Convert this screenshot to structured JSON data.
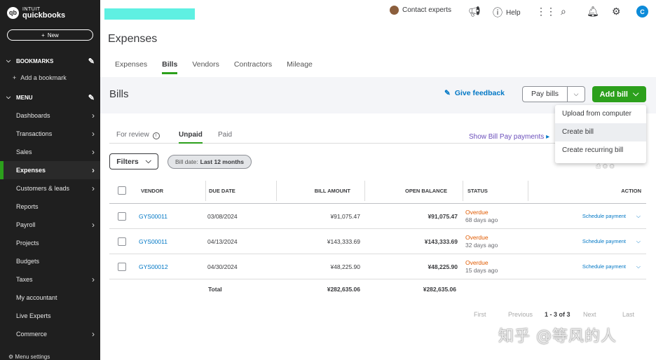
{
  "sidebar": {
    "logo_line1": "INTUIT",
    "logo_line2": "quickbooks",
    "logo_mark": "qb",
    "new_label": "New",
    "bookmarks_label": "BOOKMARKS",
    "add_bookmark": "Add a bookmark",
    "menu_label": "MENU",
    "items": [
      {
        "label": "Dashboards",
        "arrow": true
      },
      {
        "label": "Transactions",
        "arrow": true
      },
      {
        "label": "Sales",
        "arrow": true
      },
      {
        "label": "Expenses",
        "arrow": true,
        "active": true
      },
      {
        "label": "Customers & leads",
        "arrow": true
      },
      {
        "label": "Reports",
        "arrow": false
      },
      {
        "label": "Payroll",
        "arrow": true
      },
      {
        "label": "Projects",
        "arrow": false
      },
      {
        "label": "Budgets",
        "arrow": false
      },
      {
        "label": "Taxes",
        "arrow": true
      },
      {
        "label": "My accountant",
        "arrow": false
      },
      {
        "label": "Live Experts",
        "arrow": false
      },
      {
        "label": "Commerce",
        "arrow": true
      }
    ],
    "menu_settings": "Menu settings"
  },
  "topbar": {
    "contact": "Contact experts",
    "help": "Help",
    "user_initial": "C"
  },
  "page": {
    "title": "Expenses",
    "tabs": [
      "Expenses",
      "Bills",
      "Vendors",
      "Contractors",
      "Mileage"
    ],
    "active_tab": "Bills"
  },
  "bills": {
    "title": "Bills",
    "feedback": "Give feedback",
    "pay_bills": "Pay bills",
    "add_bill": "Add bill",
    "dropdown": [
      "Upload from computer",
      "Create bill",
      "Create recurring bill"
    ],
    "subtabs": [
      "For review",
      "Unpaid",
      "Paid"
    ],
    "show_pay": "Show Bill Pay payments",
    "filters": "Filters",
    "chip_prefix": "Bill date:",
    "chip_value": "Last 12 months"
  },
  "table": {
    "headers": {
      "vendor": "VENDOR",
      "due": "DUE DATE",
      "amount": "BILL AMOUNT",
      "balance": "OPEN BALANCE",
      "status": "STATUS",
      "action": "ACTION"
    },
    "rows": [
      {
        "vendor": "GYS00011",
        "due": "03/08/2024",
        "amount": "¥91,075.47",
        "balance": "¥91,075.47",
        "status": "Overdue",
        "days": "68 days ago",
        "action": "Schedule payment"
      },
      {
        "vendor": "GYS00011",
        "due": "04/13/2024",
        "amount": "¥143,333.69",
        "balance": "¥143,333.69",
        "status": "Overdue",
        "days": "32 days ago",
        "action": "Schedule payment"
      },
      {
        "vendor": "GYS00012",
        "due": "04/30/2024",
        "amount": "¥48,225.90",
        "balance": "¥48,225.90",
        "status": "Overdue",
        "days": "15 days ago",
        "action": "Schedule payment"
      }
    ],
    "total_label": "Total",
    "total_amount": "¥282,635.06",
    "total_balance": "¥282,635.06"
  },
  "pager": {
    "first": "First",
    "previous": "Previous",
    "range": "1 - 3 of 3",
    "next": "Next",
    "last": "Last"
  },
  "watermark": "知乎 @等风的人"
}
